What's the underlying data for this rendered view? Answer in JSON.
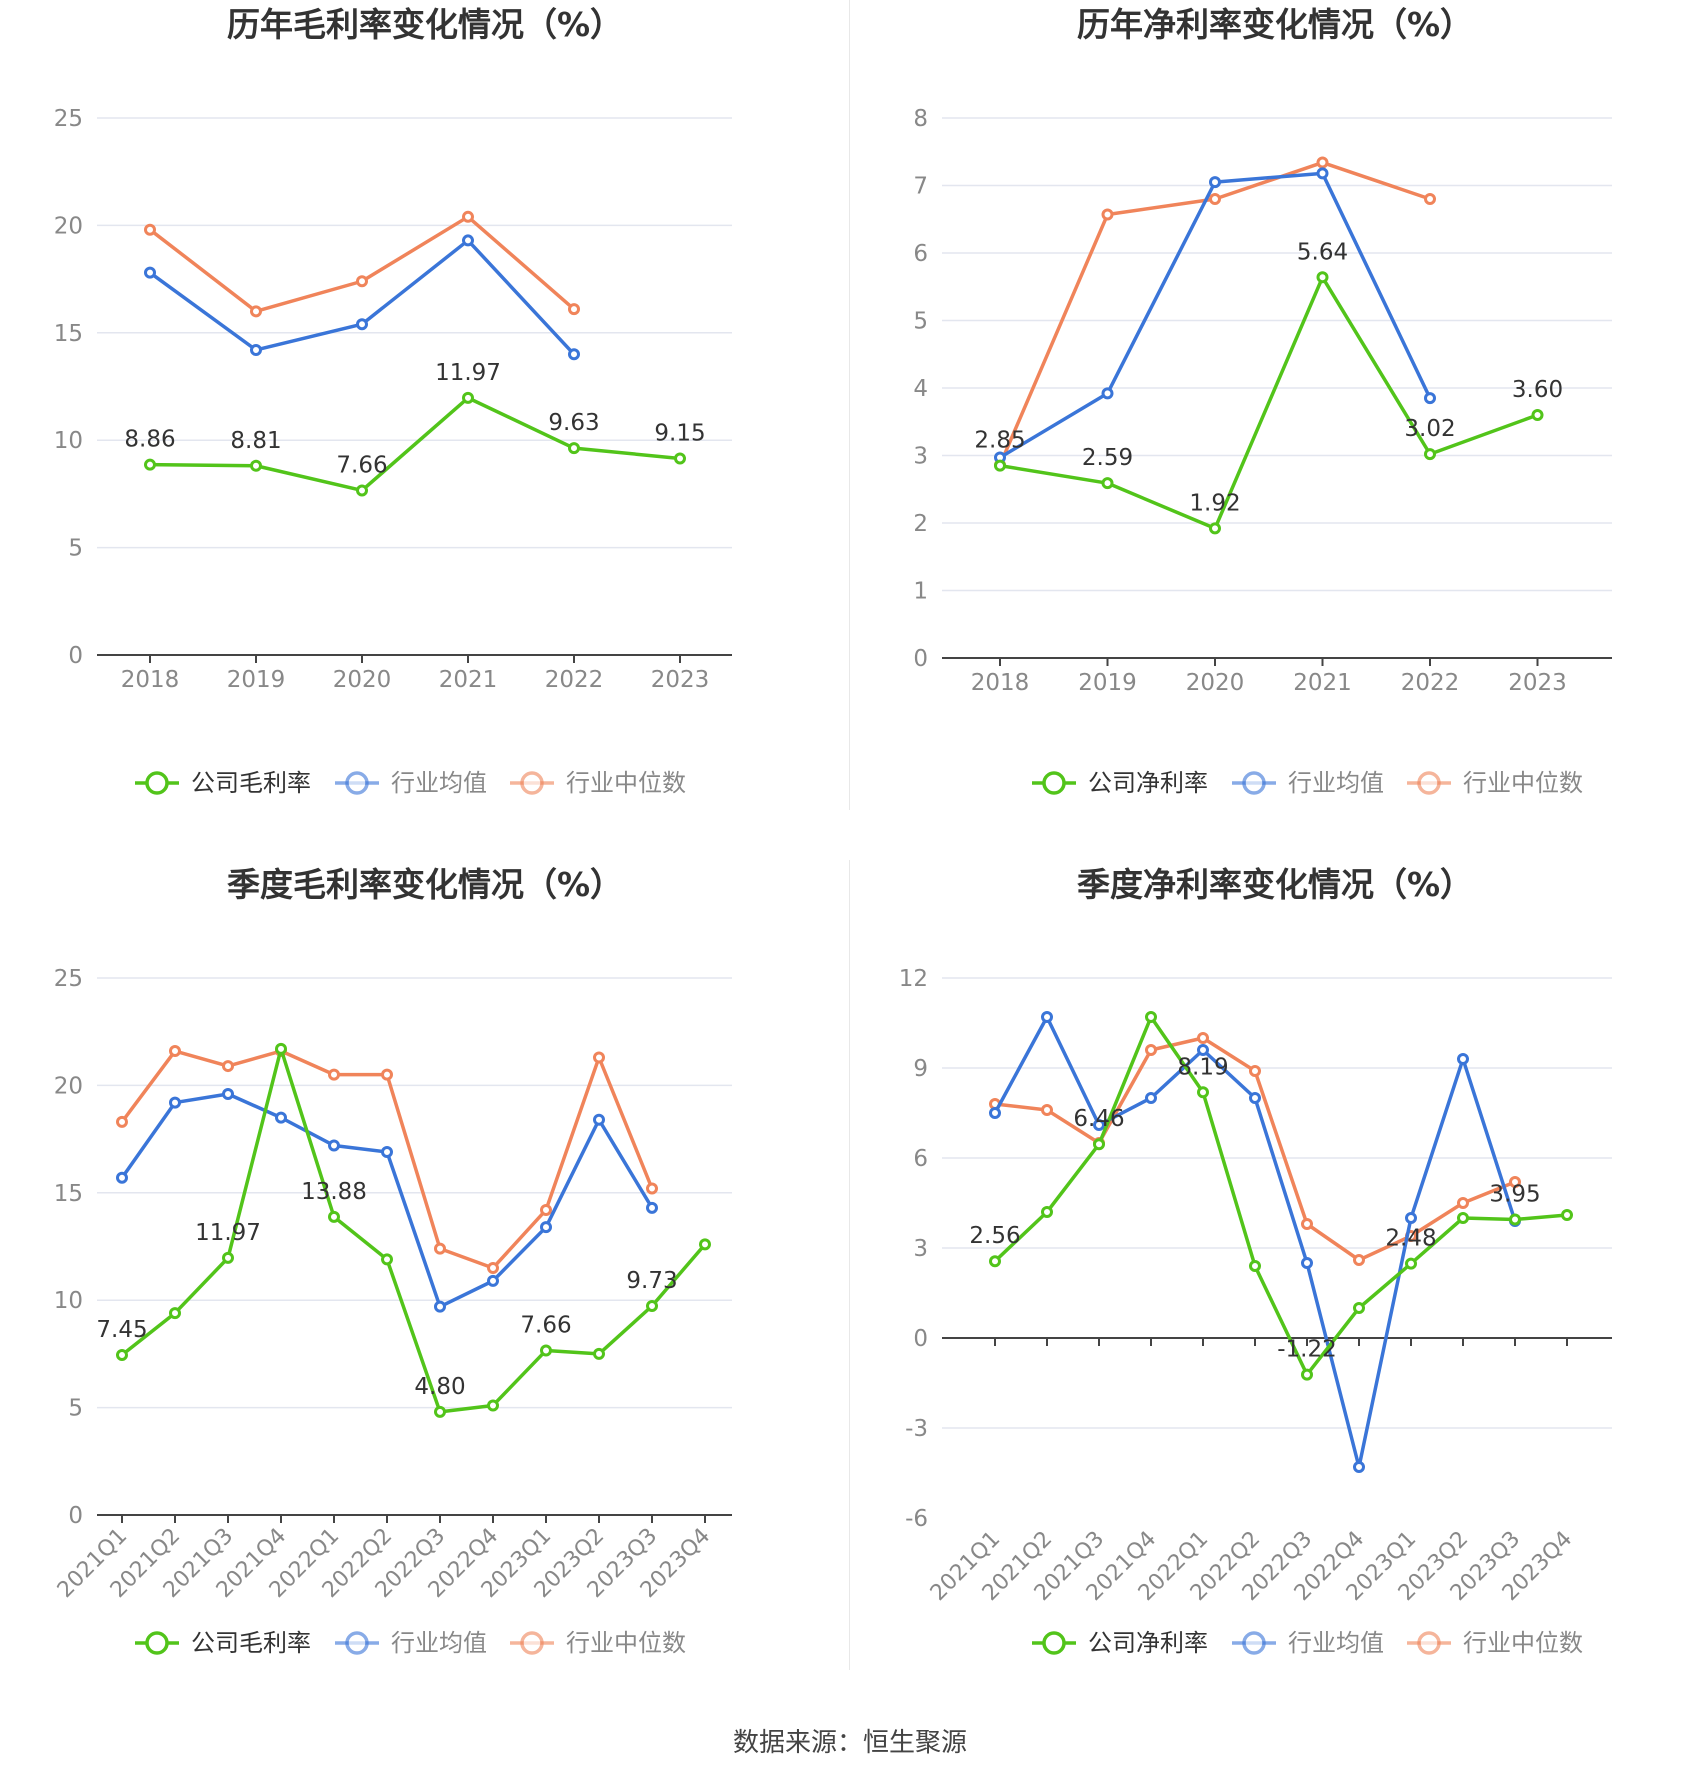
{
  "colors": {
    "company": "#52c41a",
    "avg": "#3a75d8",
    "median": "#f0845a",
    "grid": "#e3e6ef",
    "axis": "#444444",
    "tick": "#888888",
    "title": "#333333"
  },
  "source_text": "数据来源：恒生聚源",
  "chart_data": [
    {
      "type": "line",
      "title": "历年毛利率变化情况（%）",
      "categories": [
        "2018",
        "2019",
        "2020",
        "2021",
        "2022",
        "2023"
      ],
      "ylim": [
        0,
        25
      ],
      "yticks": [
        0,
        5,
        10,
        15,
        20,
        25
      ],
      "grid": true,
      "legend": "bottom-center",
      "series": [
        {
          "name": "公司毛利率",
          "role": "company",
          "values": [
            8.86,
            8.81,
            7.66,
            11.97,
            9.63,
            9.15
          ],
          "labels": [
            "8.86",
            "8.81",
            "7.66",
            "11.97",
            "9.63",
            "9.15"
          ]
        },
        {
          "name": "行业均值",
          "role": "avg",
          "values": [
            17.8,
            14.2,
            15.4,
            19.3,
            14.0,
            null
          ]
        },
        {
          "name": "行业中位数",
          "role": "median",
          "values": [
            19.8,
            16.0,
            17.4,
            20.4,
            16.1,
            null
          ]
        }
      ]
    },
    {
      "type": "line",
      "title": "历年净利率变化情况（%）",
      "categories": [
        "2018",
        "2019",
        "2020",
        "2021",
        "2022",
        "2023"
      ],
      "ylim": [
        0,
        8
      ],
      "yticks": [
        0,
        1,
        2,
        3,
        4,
        5,
        6,
        7,
        8
      ],
      "grid": true,
      "legend": "bottom-center",
      "series": [
        {
          "name": "公司净利率",
          "role": "company",
          "values": [
            2.85,
            2.59,
            1.92,
            5.64,
            3.02,
            3.6
          ],
          "labels": [
            "2.85",
            "2.59",
            "1.92",
            "5.64",
            "3.02",
            "3.60"
          ]
        },
        {
          "name": "行业均值",
          "role": "avg",
          "values": [
            2.97,
            3.92,
            7.05,
            7.18,
            3.85,
            null
          ]
        },
        {
          "name": "行业中位数",
          "role": "median",
          "values": [
            2.86,
            6.57,
            6.8,
            7.34,
            6.8,
            null
          ]
        }
      ]
    },
    {
      "type": "line",
      "title": "季度毛利率变化情况（%）",
      "categories": [
        "2021Q1",
        "2021Q2",
        "2021Q3",
        "2021Q4",
        "2022Q1",
        "2022Q2",
        "2022Q3",
        "2022Q4",
        "2023Q1",
        "2023Q2",
        "2023Q3",
        "2023Q4"
      ],
      "ylim": [
        0,
        25
      ],
      "yticks": [
        0,
        5,
        10,
        15,
        20,
        25
      ],
      "grid": true,
      "legend": "bottom-center",
      "rotate_x": true,
      "series": [
        {
          "name": "公司毛利率",
          "role": "company",
          "values": [
            7.45,
            9.4,
            11.97,
            21.7,
            13.88,
            11.9,
            4.8,
            5.1,
            7.66,
            7.5,
            9.73,
            12.6
          ],
          "labels": [
            "7.45",
            null,
            "11.97",
            null,
            "13.88",
            null,
            "4.80",
            null,
            "7.66",
            null,
            "9.73",
            null
          ]
        },
        {
          "name": "行业均值",
          "role": "avg",
          "values": [
            15.7,
            19.2,
            19.6,
            18.5,
            17.2,
            16.9,
            9.7,
            10.9,
            13.4,
            18.4,
            14.3,
            null
          ]
        },
        {
          "name": "行业中位数",
          "role": "median",
          "values": [
            18.3,
            21.6,
            20.9,
            21.6,
            20.5,
            20.5,
            12.4,
            11.5,
            14.2,
            21.3,
            15.2,
            null
          ]
        }
      ]
    },
    {
      "type": "line",
      "title": "季度净利率变化情况（%）",
      "categories": [
        "2021Q1",
        "2021Q2",
        "2021Q3",
        "2021Q4",
        "2022Q1",
        "2022Q2",
        "2022Q3",
        "2022Q4",
        "2023Q1",
        "2023Q2",
        "2023Q3",
        "2023Q4"
      ],
      "ylim": [
        -6,
        12
      ],
      "yticks": [
        -6,
        -3,
        0,
        3,
        6,
        9,
        12
      ],
      "grid": true,
      "legend": "bottom-center",
      "rotate_x": true,
      "series": [
        {
          "name": "公司净利率",
          "role": "company",
          "values": [
            2.56,
            4.2,
            6.46,
            10.7,
            8.19,
            2.4,
            -1.22,
            1.0,
            2.48,
            4.0,
            3.95,
            4.1
          ],
          "labels": [
            "2.56",
            null,
            "6.46",
            null,
            "8.19",
            null,
            "-1.22",
            null,
            "2.48",
            null,
            "3.95",
            null
          ]
        },
        {
          "name": "行业均值",
          "role": "avg",
          "values": [
            7.5,
            10.7,
            7.1,
            8.0,
            9.6,
            8.0,
            2.5,
            -4.3,
            4.0,
            9.3,
            3.9,
            null
          ]
        },
        {
          "name": "行业中位数",
          "role": "median",
          "values": [
            7.8,
            7.6,
            6.5,
            9.6,
            10.0,
            8.9,
            3.8,
            2.6,
            3.4,
            4.5,
            5.2,
            null
          ]
        }
      ]
    }
  ]
}
